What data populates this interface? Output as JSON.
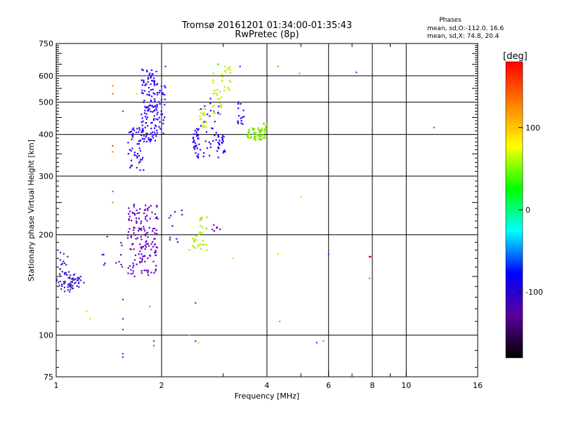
{
  "chart_data": {
    "type": "scatter",
    "title": "Tromsø 20161201 01:34:00-01:35:43",
    "subtitle": "RwPretec (8p)",
    "xlabel": "Frequency [MHz]",
    "ylabel": "Stationary phase Virtual Height [km]",
    "x_scale": "log",
    "y_scale": "log",
    "xlim": [
      1,
      16
    ],
    "ylim": [
      75,
      750
    ],
    "x_ticks": [
      1,
      2,
      4,
      6,
      8,
      10,
      16
    ],
    "x_minor_ticks": [
      3,
      5,
      7,
      9
    ],
    "y_ticks": [
      75,
      100,
      200,
      300,
      400,
      500,
      600,
      750
    ],
    "grid": true,
    "info_title": "Phases",
    "info_line_o": "mean, sd,O:-112.0, 16.6",
    "info_line_x": "mean, sd,X:  74.8, 20.4",
    "colorbar": {
      "label": "[deg]",
      "range": [
        -180,
        180
      ],
      "ticks": [
        100,
        0,
        -100
      ],
      "colors": [
        "#000000",
        "#5a0099",
        "#0000ff",
        "#00ffff",
        "#00ff00",
        "#ffff00",
        "#ff8000",
        "#ff0000"
      ]
    },
    "series": [
      {
        "color": "#3a1fc8",
        "clusters": [
          {
            "x": [
              1.0,
              1.14
            ],
            "y": [
              135,
              155
            ],
            "n": 45
          },
          {
            "x": [
              1.08,
              1.2
            ],
            "y": [
              138,
              150
            ],
            "n": 25
          },
          {
            "x": [
              1.02,
              1.08
            ],
            "y": [
              155,
              180
            ],
            "n": 12
          }
        ]
      },
      {
        "color": "#2a00ff",
        "clusters": [
          {
            "x": [
              1.6,
              1.78
            ],
            "y": [
              310,
              420
            ],
            "n": 50
          },
          {
            "x": [
              1.75,
              1.95
            ],
            "y": [
              380,
              630
            ],
            "n": 140
          },
          {
            "x": [
              1.95,
              2.05
            ],
            "y": [
              400,
              560
            ],
            "n": 25
          },
          {
            "x": [
              2.45,
              2.55
            ],
            "y": [
              340,
              420
            ],
            "n": 30
          },
          {
            "x": [
              2.55,
              2.95
            ],
            "y": [
              340,
              520
            ],
            "n": 40
          },
          {
            "x": [
              2.9,
              3.05
            ],
            "y": [
              350,
              400
            ],
            "n": 20
          },
          {
            "x": [
              3.3,
              3.45
            ],
            "y": [
              430,
              520
            ],
            "n": 15
          }
        ]
      },
      {
        "color": "#6600c8",
        "clusters": [
          {
            "x": [
              1.6,
              1.95
            ],
            "y": [
              150,
              250
            ],
            "n": 160
          },
          {
            "x": [
              1.35,
              1.55
            ],
            "y": [
              150,
              200
            ],
            "n": 12
          },
          {
            "x": [
              2.1,
              2.3
            ],
            "y": [
              190,
              250
            ],
            "n": 10
          },
          {
            "x": [
              2.75,
              3.0
            ],
            "y": [
              205,
              215
            ],
            "n": 6
          }
        ]
      },
      {
        "color": "#c8e600",
        "clusters": [
          {
            "x": [
              2.55,
              2.7
            ],
            "y": [
              420,
              480
            ],
            "n": 20
          },
          {
            "x": [
              2.8,
              3.0
            ],
            "y": [
              460,
              620
            ],
            "n": 30
          },
          {
            "x": [
              3.0,
              3.15
            ],
            "y": [
              540,
              640
            ],
            "n": 15
          }
        ]
      },
      {
        "color": "#7ee600",
        "clusters": [
          {
            "x": [
              3.5,
              3.95
            ],
            "y": [
              385,
              420
            ],
            "n": 70
          },
          {
            "x": [
              3.85,
              4.05
            ],
            "y": [
              405,
              435
            ],
            "n": 10
          }
        ]
      },
      {
        "color": "#a8e600",
        "clusters": [
          {
            "x": [
              2.4,
              2.7
            ],
            "y": [
              180,
              200
            ],
            "n": 20
          },
          {
            "x": [
              2.55,
              2.7
            ],
            "y": [
              200,
              230
            ],
            "n": 15
          }
        ]
      }
    ],
    "scattered_points": [
      {
        "x": 1.45,
        "y": 560,
        "color": "#ff8000"
      },
      {
        "x": 1.45,
        "y": 530,
        "color": "#ff6020"
      },
      {
        "x": 1.45,
        "y": 370,
        "color": "#ff4000"
      },
      {
        "x": 1.45,
        "y": 355,
        "color": "#ff8000"
      },
      {
        "x": 1.45,
        "y": 270,
        "color": "#4080ff"
      },
      {
        "x": 1.45,
        "y": 250,
        "color": "#ff8000"
      },
      {
        "x": 1.55,
        "y": 470,
        "color": "#3040ff"
      },
      {
        "x": 1.55,
        "y": 128,
        "color": "#3040ff"
      },
      {
        "x": 1.55,
        "y": 112,
        "color": "#3040ff"
      },
      {
        "x": 1.55,
        "y": 104,
        "color": "#3040ff"
      },
      {
        "x": 1.55,
        "y": 88,
        "color": "#3040ff"
      },
      {
        "x": 1.55,
        "y": 86,
        "color": "#3040ff"
      },
      {
        "x": 1.7,
        "y": 530,
        "color": "#ffd000"
      },
      {
        "x": 1.22,
        "y": 118,
        "color": "#ffd000"
      },
      {
        "x": 1.25,
        "y": 112,
        "color": "#ffd000"
      },
      {
        "x": 1.85,
        "y": 122,
        "color": "#ff8000"
      },
      {
        "x": 1.9,
        "y": 96,
        "color": "#c800c8"
      },
      {
        "x": 1.9,
        "y": 93,
        "color": "#00c800"
      },
      {
        "x": 2.05,
        "y": 640,
        "color": "#3040ff"
      },
      {
        "x": 2.4,
        "y": 100,
        "color": "#80e600"
      },
      {
        "x": 2.5,
        "y": 96,
        "color": "#3040ff"
      },
      {
        "x": 2.55,
        "y": 95,
        "color": "#ffd000"
      },
      {
        "x": 2.5,
        "y": 125,
        "color": "#3040ff"
      },
      {
        "x": 2.9,
        "y": 650,
        "color": "#00ff00"
      },
      {
        "x": 3.2,
        "y": 170,
        "color": "#ffd000"
      },
      {
        "x": 3.35,
        "y": 640,
        "color": "#3040ff"
      },
      {
        "x": 4.3,
        "y": 640,
        "color": "#ff8000"
      },
      {
        "x": 4.3,
        "y": 175,
        "color": "#ffd000"
      },
      {
        "x": 4.35,
        "y": 110,
        "color": "#ff8000"
      },
      {
        "x": 4.95,
        "y": 610,
        "color": "#40c8ff"
      },
      {
        "x": 5.0,
        "y": 260,
        "color": "#ffd000"
      },
      {
        "x": 5.55,
        "y": 95,
        "color": "#3040ff"
      },
      {
        "x": 5.8,
        "y": 96,
        "color": "#ff8000"
      },
      {
        "x": 6.0,
        "y": 175,
        "color": "#3040ff"
      },
      {
        "x": 7.2,
        "y": 615,
        "color": "#3040ff"
      },
      {
        "x": 7.85,
        "y": 172,
        "color": "#ff0000"
      },
      {
        "x": 7.9,
        "y": 172,
        "color": "#c80000"
      },
      {
        "x": 7.85,
        "y": 148,
        "color": "#00c8c8"
      },
      {
        "x": 12.0,
        "y": 420,
        "color": "#ff4000"
      }
    ]
  }
}
